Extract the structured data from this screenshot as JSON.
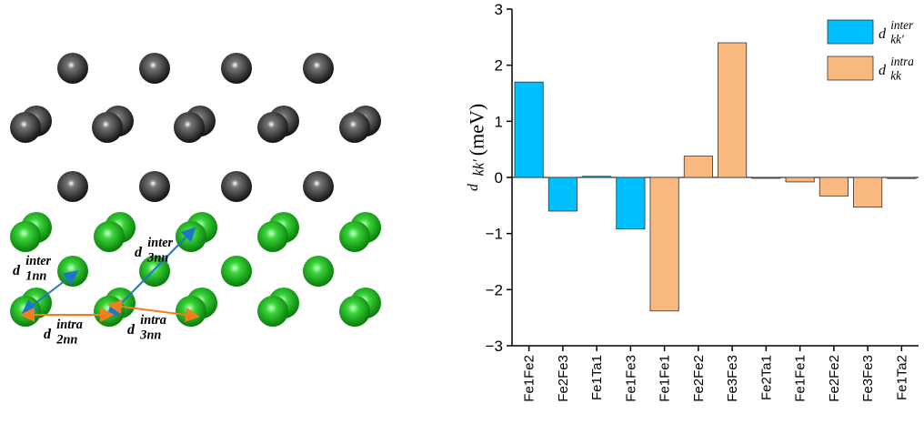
{
  "diagram": {
    "labels": [
      {
        "symbol": "d",
        "subscript": "1nn",
        "superscript": "inter",
        "color": "#1f77c4"
      },
      {
        "symbol": "d",
        "subscript": "3nn",
        "superscript": "inter",
        "color": "#1f77c4"
      },
      {
        "symbol": "d",
        "subscript": "2nn",
        "superscript": "intra",
        "color": "#f07f1e"
      },
      {
        "symbol": "d",
        "subscript": "3nn",
        "superscript": "intra",
        "color": "#f07f1e"
      }
    ]
  },
  "chart_data": {
    "type": "bar",
    "ylabel": {
      "symbol": "d",
      "subscript": "kk′",
      "unit": "(meV)"
    },
    "categories": [
      "Fe1Fe2",
      "Fe2Fe3",
      "Fe1Ta1",
      "Fe1Fe3",
      "Fe1Fe1",
      "Fe2Fe2",
      "Fe3Fe3",
      "Fe2Ta1",
      "Fe1Fe1",
      "Fe2Fe2",
      "Fe3Fe3",
      "Fe1Ta2"
    ],
    "series": [
      {
        "name": "d",
        "subscript": "kk′",
        "superscript": "inter",
        "color": "#00bfff",
        "values": [
          1.7,
          -0.6,
          0.02,
          -0.92,
          null,
          null,
          null,
          -0.01,
          null,
          null,
          null,
          -0.02
        ]
      },
      {
        "name": "d",
        "subscript": "kk",
        "superscript": "intra",
        "color": "#f9b97f",
        "values": [
          null,
          null,
          null,
          null,
          -2.38,
          0.38,
          2.4,
          null,
          -0.08,
          -0.33,
          -0.53,
          null
        ]
      }
    ],
    "ylim": [
      -3,
      3
    ],
    "yticks": [
      {
        "value": -3,
        "label": "−3"
      },
      {
        "value": -2,
        "label": "−2"
      },
      {
        "value": -1,
        "label": "−1"
      },
      0,
      1,
      2,
      3
    ]
  }
}
